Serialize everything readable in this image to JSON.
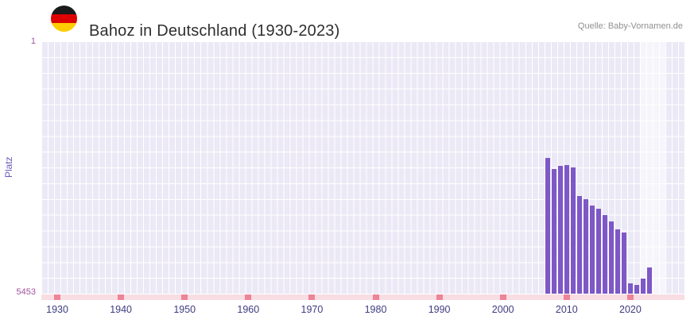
{
  "header": {
    "title": "Bahoz in Deutschland (1930-2023)",
    "source": "Quelle: Baby-Vornamen.de",
    "flag_icon": "german-flag-icon",
    "flag_colors": {
      "black": "#1a1a1a",
      "red": "#dd0000",
      "gold": "#ffcc00"
    }
  },
  "chart_data": {
    "type": "bar",
    "title": "Bahoz in Deutschland (1930-2023)",
    "xlabel": "",
    "ylabel": "Platz",
    "y_axis": {
      "top_label": "1",
      "bottom_label": "5453",
      "min": 1,
      "max": 5453,
      "inverted": true
    },
    "x_axis": {
      "domain_start": 1928,
      "domain_end": 2028,
      "tick_years": [
        1930,
        1940,
        1950,
        1960,
        1970,
        1980,
        1990,
        2000,
        2010,
        2020
      ]
    },
    "highlight_band": {
      "start_year": 2022,
      "end_year": 2025
    },
    "grid": true,
    "legend": "none",
    "series": [
      {
        "name": "Platz",
        "points": [
          {
            "year": 2007,
            "rank": 2520
          },
          {
            "year": 2008,
            "rank": 2760
          },
          {
            "year": 2009,
            "rank": 2700
          },
          {
            "year": 2010,
            "rank": 2680
          },
          {
            "year": 2011,
            "rank": 2720
          },
          {
            "year": 2012,
            "rank": 3340
          },
          {
            "year": 2013,
            "rank": 3410
          },
          {
            "year": 2014,
            "rank": 3550
          },
          {
            "year": 2015,
            "rank": 3610
          },
          {
            "year": 2016,
            "rank": 3760
          },
          {
            "year": 2017,
            "rank": 3890
          },
          {
            "year": 2018,
            "rank": 4060
          },
          {
            "year": 2019,
            "rank": 4140
          },
          {
            "year": 2020,
            "rank": 5230
          },
          {
            "year": 2021,
            "rank": 5260
          },
          {
            "year": 2022,
            "rank": 5120
          },
          {
            "year": 2023,
            "rank": 4890
          }
        ]
      }
    ],
    "colors": {
      "bar": "#7d58c6",
      "plot_background": "#ece9f6",
      "gridline": "#ffffff",
      "highlight_overlay": "#ffffff",
      "axis_strip": "#f8dde3",
      "axis_tick": "#ee8496",
      "year_label": "#3c3c80",
      "rank_label": "#a3539e",
      "ylabel": "#6a5bb8",
      "title": "#2f2f2f",
      "source": "#8f8f8f"
    }
  }
}
